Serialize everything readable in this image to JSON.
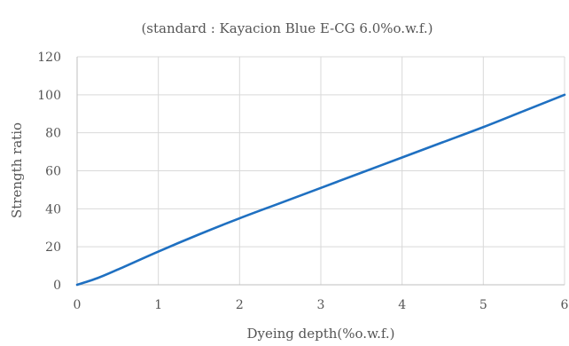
{
  "chart_data": {
    "type": "line",
    "subtitle": "(standard : Kayacion Blue E-CG 6.0%o.w.f.)",
    "xlabel": "Dyeing depth(%o.w.f.)",
    "ylabel": "Strength ratio",
    "xlim": [
      0,
      6
    ],
    "ylim": [
      0,
      120
    ],
    "x_ticks": [
      "0",
      "1",
      "2",
      "3",
      "4",
      "5",
      "6"
    ],
    "y_ticks": [
      "0",
      "20",
      "40",
      "60",
      "80",
      "100",
      "120"
    ],
    "grid": true,
    "legend": "none",
    "series": [
      {
        "color": "#1f70c1",
        "x": [
          0,
          0.25,
          0.5,
          1,
          1.5,
          2,
          2.5,
          3,
          3.5,
          4,
          4.5,
          5,
          5.5,
          6
        ],
        "y": [
          0,
          3.5,
          8,
          17.5,
          26.5,
          35,
          43,
          51,
          59,
          67,
          75,
          83,
          91.5,
          100
        ]
      }
    ]
  }
}
